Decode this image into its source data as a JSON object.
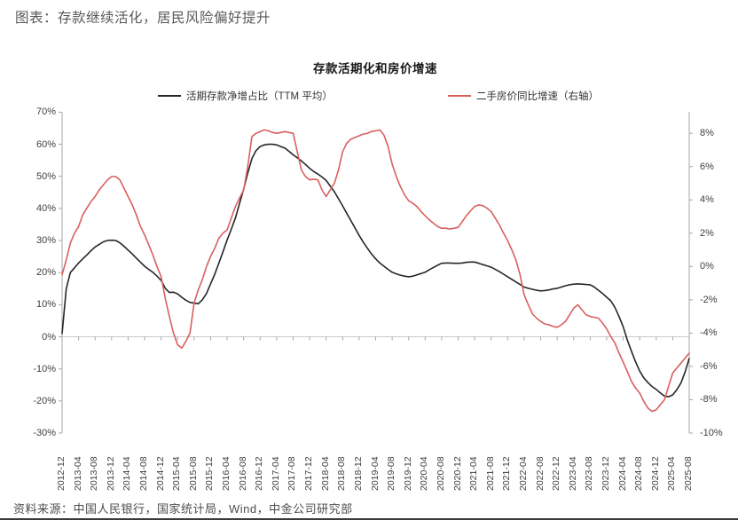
{
  "page": {
    "title": "图表：存款继续活化，居民风险偏好提升",
    "source": "资料来源：中国人民银行，国家统计局，Wind，中金公司研究部"
  },
  "chart_data": {
    "type": "line",
    "title": "存款活期化和房价增速",
    "legend_position": "top",
    "grid": false,
    "x_monthly_start": "2012-12",
    "x_monthly_end": "2025-08",
    "x_tick_labels": [
      "2012-12",
      "2013-04",
      "2013-08",
      "2013-12",
      "2014-04",
      "2014-08",
      "2014-12",
      "2015-04",
      "2015-08",
      "2015-12",
      "2016-04",
      "2016-08",
      "2016-12",
      "2017-04",
      "2017-08",
      "2017-12",
      "2018-04",
      "2018-08",
      "2018-12",
      "2019-04",
      "2019-08",
      "2019-12",
      "2020-04",
      "2020-08",
      "2020-12",
      "2021-04",
      "2021-08",
      "2021-12",
      "2022-04",
      "2022-08",
      "2022-12",
      "2023-04",
      "2023-08",
      "2023-12",
      "2024-04",
      "2024-08",
      "2024-12",
      "2025-04",
      "2025-08"
    ],
    "left_axis": {
      "ticks": [
        "70%",
        "60%",
        "50%",
        "40%",
        "30%",
        "20%",
        "10%",
        "0%",
        "-10%",
        "-20%",
        "-30%"
      ],
      "max": 70,
      "min": -30,
      "step": -10
    },
    "right_axis": {
      "ticks": [
        "8%",
        "6%",
        "4%",
        "2%",
        "0%",
        "-2%",
        "-4%",
        "-6%",
        "-8%",
        "-10%"
      ],
      "max": 8,
      "min": -10,
      "step": -2
    },
    "colors": {
      "axis": "#a6a6a6",
      "zero_line": "#c9c9c9",
      "series_black": "#262626",
      "series_red": "#d95f5f"
    },
    "series": [
      {
        "name": "活期存款净增占比（TTM 平均）",
        "axis": "left",
        "color": "#262626",
        "values": [
          1.0,
          15.0,
          20.0,
          21.5,
          23.0,
          24.3,
          25.5,
          26.8,
          28.0,
          28.8,
          29.6,
          30.0,
          30.1,
          30.0,
          29.3,
          28.2,
          27.0,
          25.8,
          24.5,
          23.2,
          22.0,
          21.0,
          20.1,
          18.9,
          17.6,
          15.1,
          13.8,
          13.9,
          13.4,
          12.3,
          11.4,
          10.7,
          10.5,
          10.3,
          11.5,
          13.5,
          16.5,
          19.5,
          23.0,
          26.5,
          30.2,
          33.5,
          37.0,
          41.5,
          46.0,
          51.0,
          55.5,
          58.0,
          59.3,
          59.8,
          60.0,
          60.0,
          59.8,
          59.3,
          58.8,
          57.8,
          56.7,
          55.8,
          54.8,
          53.7,
          52.5,
          51.5,
          50.7,
          49.8,
          48.7,
          47.0,
          45.2,
          43.0,
          40.8,
          38.5,
          36.2,
          33.9,
          31.6,
          29.5,
          27.6,
          25.8,
          24.3,
          23.0,
          22.0,
          21.0,
          20.1,
          19.6,
          19.2,
          18.9,
          18.7,
          18.9,
          19.3,
          19.7,
          20.1,
          20.9,
          21.6,
          22.3,
          22.9,
          23.0,
          23.0,
          22.9,
          22.9,
          23.0,
          23.2,
          23.3,
          23.3,
          22.9,
          22.5,
          22.1,
          21.7,
          21.0,
          20.3,
          19.5,
          18.7,
          17.9,
          17.1,
          16.3,
          15.5,
          15.1,
          14.8,
          14.5,
          14.3,
          14.4,
          14.6,
          14.9,
          15.1,
          15.5,
          15.9,
          16.2,
          16.4,
          16.5,
          16.4,
          16.3,
          16.2,
          15.5,
          14.5,
          13.5,
          12.3,
          11.2,
          9.1,
          6.3,
          3.1,
          -1.0,
          -4.5,
          -7.8,
          -10.7,
          -12.8,
          -14.3,
          -15.5,
          -16.4,
          -17.5,
          -18.5,
          -18.7,
          -18.1,
          -16.5,
          -14.4,
          -11.0,
          -6.8
        ]
      },
      {
        "name": "二手房价同比增速（右轴）",
        "axis": "right",
        "color": "#d95f5f",
        "values": [
          -0.5,
          0.4,
          1.4,
          2.0,
          2.4,
          3.1,
          3.5,
          3.9,
          4.2,
          4.6,
          4.9,
          5.2,
          5.4,
          5.4,
          5.2,
          4.7,
          4.2,
          3.7,
          3.1,
          2.4,
          1.9,
          1.3,
          0.7,
          0.0,
          -0.6,
          -1.9,
          -3.0,
          -4.0,
          -4.7,
          -4.9,
          -4.5,
          -4.0,
          -2.2,
          -1.4,
          -0.8,
          0.0,
          0.6,
          1.1,
          1.7,
          2.0,
          2.2,
          2.9,
          3.6,
          4.1,
          4.6,
          6.0,
          7.8,
          8.0,
          8.1,
          8.2,
          8.15,
          8.05,
          8.0,
          8.05,
          8.1,
          8.05,
          8.0,
          6.9,
          5.8,
          5.4,
          5.2,
          5.25,
          5.2,
          4.6,
          4.2,
          4.6,
          5.0,
          5.8,
          6.9,
          7.4,
          7.65,
          7.75,
          7.85,
          7.95,
          8.0,
          8.1,
          8.15,
          8.2,
          7.9,
          7.2,
          6.15,
          5.4,
          4.8,
          4.3,
          3.95,
          3.8,
          3.6,
          3.3,
          3.05,
          2.8,
          2.6,
          2.4,
          2.3,
          2.3,
          2.25,
          2.3,
          2.35,
          2.7,
          3.05,
          3.35,
          3.6,
          3.7,
          3.65,
          3.5,
          3.3,
          2.9,
          2.5,
          2.0,
          1.55,
          1.0,
          0.4,
          -0.5,
          -1.7,
          -2.3,
          -2.85,
          -3.1,
          -3.3,
          -3.45,
          -3.5,
          -3.6,
          -3.65,
          -3.5,
          -3.3,
          -2.9,
          -2.5,
          -2.3,
          -2.6,
          -2.9,
          -3.0,
          -3.05,
          -3.1,
          -3.4,
          -3.75,
          -4.2,
          -4.6,
          -5.2,
          -5.75,
          -6.3,
          -6.9,
          -7.3,
          -7.6,
          -8.1,
          -8.5,
          -8.7,
          -8.6,
          -8.3,
          -8.0,
          -7.2,
          -6.4,
          -6.1,
          -5.8,
          -5.5,
          -5.2
        ]
      }
    ]
  }
}
